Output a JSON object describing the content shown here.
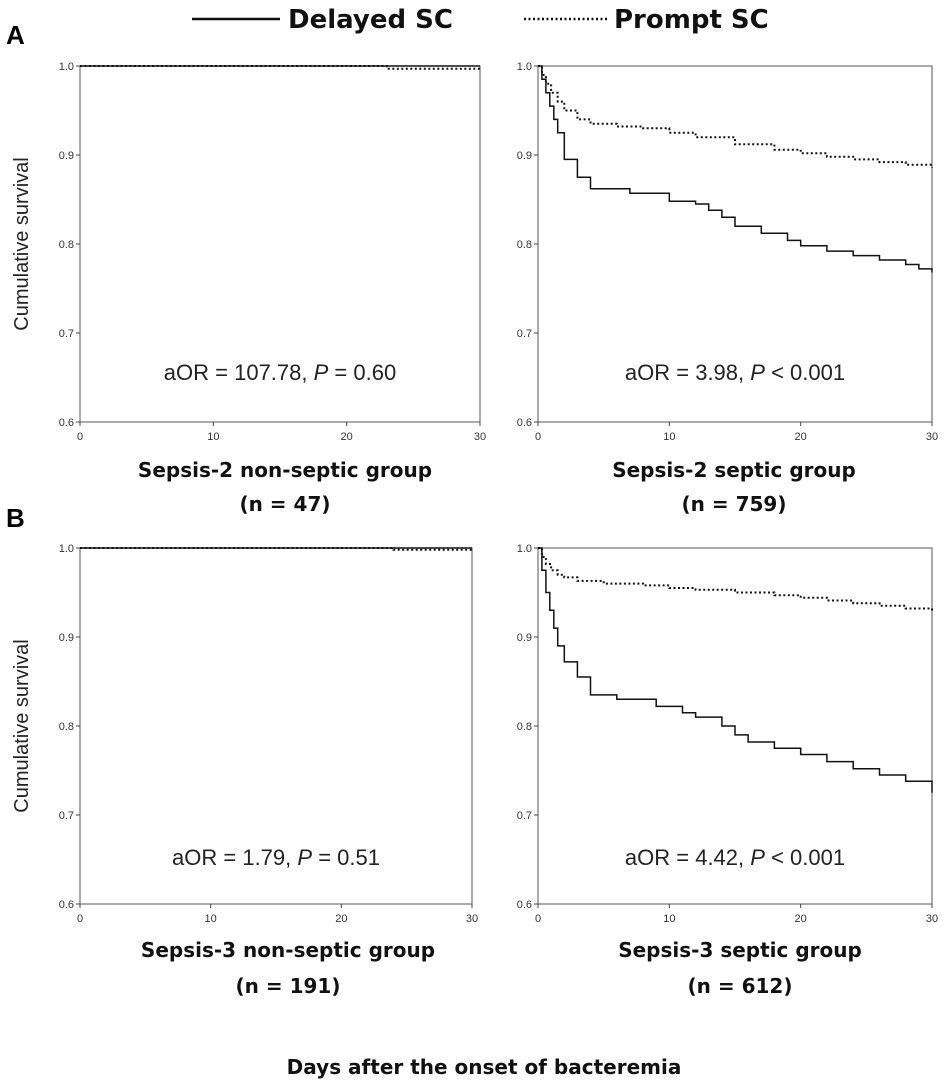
{
  "legend": {
    "delayed_label": "Delayed SC",
    "prompt_label": "Prompt SC"
  },
  "panel_letters": [
    "A",
    "B"
  ],
  "x_axis_label": "Days after the onset of bacteremia",
  "chart_data": [
    {
      "type": "line",
      "step": true,
      "title": "Sepsis-2 non-septic group",
      "subtitle": "(n = 47)",
      "ylabel": "Cumulative survival",
      "xlim": [
        0,
        30
      ],
      "ylim": [
        0.6,
        1.0
      ],
      "xticks": [
        0,
        10,
        20,
        30
      ],
      "yticks": [
        0.6,
        0.7,
        0.8,
        0.9,
        1.0
      ],
      "annotation": {
        "stat": "aOR = 107.78, ",
        "p_label": "P",
        "p_value": " = 0.60"
      },
      "series": [
        {
          "name": "Delayed SC",
          "style": "solid",
          "x": [
            0,
            30
          ],
          "y": [
            1.0,
            1.0
          ]
        },
        {
          "name": "Prompt SC",
          "style": "dotted",
          "x": [
            0,
            23,
            23,
            30
          ],
          "y": [
            1.0,
            1.0,
            0.997,
            0.997
          ]
        }
      ]
    },
    {
      "type": "line",
      "step": true,
      "title": "Sepsis-2 septic group",
      "subtitle": "(n = 759)",
      "ylabel": "",
      "xlim": [
        0,
        30
      ],
      "ylim": [
        0.6,
        1.0
      ],
      "xticks": [
        0,
        10,
        20,
        30
      ],
      "yticks": [
        0.6,
        0.7,
        0.8,
        0.9,
        1.0
      ],
      "annotation": {
        "stat": "aOR = 3.98, ",
        "p_label": "P",
        "p_value": " < 0.001"
      },
      "series": [
        {
          "name": "Delayed SC",
          "style": "solid",
          "x": [
            0,
            0.3,
            0.6,
            0.9,
            1.2,
            1.5,
            2,
            3,
            4,
            5,
            7,
            10,
            12,
            13,
            14,
            15,
            17,
            19,
            20,
            22,
            24,
            26,
            28,
            29,
            30
          ],
          "y": [
            1.0,
            0.985,
            0.97,
            0.955,
            0.94,
            0.925,
            0.895,
            0.875,
            0.862,
            0.862,
            0.857,
            0.848,
            0.845,
            0.838,
            0.83,
            0.82,
            0.812,
            0.804,
            0.798,
            0.792,
            0.787,
            0.782,
            0.777,
            0.772,
            0.768
          ]
        },
        {
          "name": "Prompt SC",
          "style": "dotted",
          "x": [
            0,
            0.3,
            0.6,
            1,
            1.5,
            2,
            3,
            4,
            6,
            8,
            10,
            12,
            15,
            18,
            20,
            22,
            24,
            26,
            28,
            30
          ],
          "y": [
            1.0,
            0.99,
            0.98,
            0.97,
            0.96,
            0.95,
            0.94,
            0.935,
            0.932,
            0.93,
            0.925,
            0.92,
            0.912,
            0.906,
            0.902,
            0.898,
            0.895,
            0.892,
            0.889,
            0.886
          ]
        }
      ]
    },
    {
      "type": "line",
      "step": true,
      "title": "Sepsis-3 non-septic group",
      "subtitle": "(n = 191)",
      "ylabel": "Cumulative survival",
      "xlim": [
        0,
        30
      ],
      "ylim": [
        0.6,
        1.0
      ],
      "xticks": [
        0,
        10,
        20,
        30
      ],
      "yticks": [
        0.6,
        0.7,
        0.8,
        0.9,
        1.0
      ],
      "annotation": {
        "stat": "aOR = 1.79, ",
        "p_label": "P",
        "p_value": " = 0.51"
      },
      "series": [
        {
          "name": "Delayed SC",
          "style": "solid",
          "x": [
            0,
            30
          ],
          "y": [
            1.0,
            1.0
          ]
        },
        {
          "name": "Prompt SC",
          "style": "dotted",
          "x": [
            0,
            24,
            24,
            30
          ],
          "y": [
            1.0,
            1.0,
            0.998,
            0.998
          ]
        }
      ]
    },
    {
      "type": "line",
      "step": true,
      "title": "Sepsis-3 septic group",
      "subtitle": "(n = 612)",
      "ylabel": "",
      "xlim": [
        0,
        30
      ],
      "ylim": [
        0.6,
        1.0
      ],
      "xticks": [
        0,
        10,
        20,
        30
      ],
      "yticks": [
        0.6,
        0.7,
        0.8,
        0.9,
        1.0
      ],
      "annotation": {
        "stat": "aOR = 4.42, ",
        "p_label": "P",
        "p_value": " < 0.001"
      },
      "series": [
        {
          "name": "Delayed SC",
          "style": "solid",
          "x": [
            0,
            0.3,
            0.6,
            0.9,
            1.2,
            1.5,
            2,
            3,
            4,
            6,
            9,
            11,
            12,
            14,
            15,
            16,
            18,
            20,
            22,
            24,
            26,
            28,
            30
          ],
          "y": [
            1.0,
            0.975,
            0.95,
            0.93,
            0.91,
            0.89,
            0.872,
            0.855,
            0.835,
            0.83,
            0.822,
            0.815,
            0.81,
            0.8,
            0.79,
            0.782,
            0.775,
            0.768,
            0.76,
            0.752,
            0.745,
            0.738,
            0.725
          ]
        },
        {
          "name": "Prompt SC",
          "style": "dotted",
          "x": [
            0,
            0.3,
            0.6,
            1,
            1.5,
            2,
            3,
            5,
            8,
            10,
            12,
            15,
            18,
            20,
            22,
            24,
            26,
            28,
            30
          ],
          "y": [
            1.0,
            0.99,
            0.982,
            0.975,
            0.97,
            0.967,
            0.963,
            0.96,
            0.958,
            0.955,
            0.953,
            0.95,
            0.947,
            0.944,
            0.941,
            0.938,
            0.935,
            0.932,
            0.929
          ]
        }
      ]
    }
  ]
}
